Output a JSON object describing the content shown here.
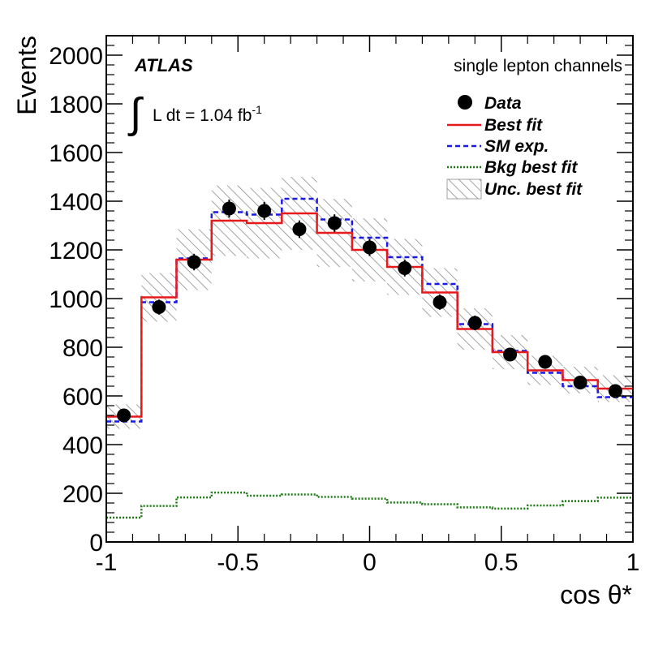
{
  "chart_data": {
    "type": "histogram",
    "title": "",
    "xlabel": "cos θ*",
    "ylabel": "Events",
    "xlim": [
      -1,
      1
    ],
    "ylim": [
      0,
      2080
    ],
    "x_ticks": [
      -1,
      -0.5,
      0,
      0.5,
      1
    ],
    "x_tick_labels": [
      "-1",
      "-0.5",
      "0",
      "0.5",
      "1"
    ],
    "y_ticks": [
      0,
      200,
      400,
      600,
      800,
      1000,
      1200,
      1400,
      1600,
      1800,
      2000
    ],
    "y_tick_labels": [
      "0",
      "200",
      "400",
      "600",
      "800",
      "1000",
      "1200",
      "1400",
      "1600",
      "1800",
      "2000"
    ],
    "bin_edges": [
      -1,
      -0.8667,
      -0.7333,
      -0.6,
      -0.4667,
      -0.3333,
      -0.2,
      -0.0667,
      0.0667,
      0.2,
      0.3333,
      0.4667,
      0.6,
      0.7333,
      0.8667,
      1
    ],
    "series": [
      {
        "name": "Data",
        "style": "points",
        "color": "#000000",
        "values": [
          520,
          965,
          1150,
          1370,
          1360,
          1285,
          1310,
          1210,
          1125,
          985,
          900,
          770,
          740,
          655,
          620
        ],
        "errors": [
          23,
          31,
          34,
          37,
          37,
          36,
          36,
          35,
          34,
          31,
          30,
          28,
          27,
          26,
          25
        ]
      },
      {
        "name": "Best fit",
        "style": "step",
        "color": "#e8191b",
        "values": [
          515,
          1005,
          1160,
          1320,
          1310,
          1350,
          1270,
          1200,
          1130,
          1025,
          875,
          780,
          705,
          665,
          630
        ]
      },
      {
        "name": "SM exp.",
        "style": "step-dashed",
        "color": "#1a1ae6",
        "values": [
          495,
          985,
          1165,
          1355,
          1345,
          1410,
          1325,
          1250,
          1170,
          1060,
          895,
          785,
          695,
          640,
          595
        ]
      },
      {
        "name": "Bkg best fit",
        "style": "step-dotted",
        "color": "#1c7a12",
        "values": [
          100,
          148,
          183,
          203,
          190,
          195,
          185,
          178,
          162,
          155,
          142,
          137,
          150,
          168,
          182
        ]
      },
      {
        "name": "Unc. best fit",
        "style": "hatched-band",
        "color": "#888888",
        "values": [
          515,
          1005,
          1160,
          1320,
          1310,
          1350,
          1270,
          1200,
          1130,
          1025,
          875,
          780,
          705,
          665,
          630
        ],
        "errors": [
          50,
          100,
          125,
          145,
          145,
          150,
          140,
          130,
          115,
          100,
          85,
          70,
          60,
          55,
          55
        ]
      }
    ],
    "annotations": {
      "experiment": "ATLAS",
      "luminosity_prefix": "L dt = 1.04 fb",
      "luminosity_exponent": "-1",
      "integral_symbol": "∫",
      "channel": "single lepton channels"
    },
    "legend": {
      "position": "top-right",
      "entries": [
        "Data",
        "Best fit",
        "SM exp.",
        "Bkg best fit",
        "Unc. best fit"
      ]
    }
  }
}
